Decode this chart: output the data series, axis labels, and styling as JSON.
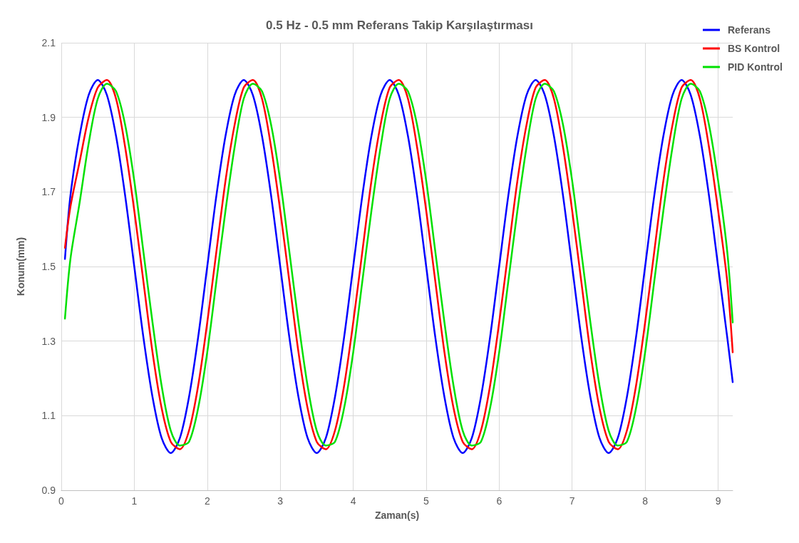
{
  "chart_data": {
    "type": "line",
    "title": "0.5 Hz - 0.5 mm Referans Takip Karşılaştırması",
    "xlabel": "Zaman(s)",
    "ylabel": "Konum(mm)",
    "x": [
      0.05,
      0.125,
      0.25,
      0.375,
      0.5,
      0.625,
      0.75,
      0.875,
      1,
      1.125,
      1.25,
      1.375,
      1.5,
      1.625,
      1.75,
      1.875,
      2,
      2.125,
      2.25,
      2.375,
      2.5,
      2.625,
      2.75,
      2.875,
      3,
      3.125,
      3.25,
      3.375,
      3.5,
      3.625,
      3.75,
      3.875,
      4,
      4.125,
      4.25,
      4.375,
      4.5,
      4.625,
      4.75,
      4.875,
      5,
      5.125,
      5.25,
      5.375,
      5.5,
      5.625,
      5.75,
      5.875,
      6,
      6.125,
      6.25,
      6.375,
      6.5,
      6.625,
      6.75,
      6.875,
      7,
      7.125,
      7.25,
      7.375,
      7.5,
      7.625,
      7.75,
      7.875,
      8,
      8.125,
      8.25,
      8.375,
      8.5,
      8.625,
      8.75,
      8.875,
      9,
      9.125,
      9.2
    ],
    "xlim": [
      0,
      9.2
    ],
    "xticks": [
      0,
      1,
      2,
      3,
      4,
      5,
      6,
      7,
      8,
      9
    ],
    "ylim": [
      0.9,
      2.1
    ],
    "yticks": [
      0.9,
      1.1,
      1.3,
      1.5,
      1.7,
      1.9,
      2.1
    ],
    "grid": true,
    "legend": "top right",
    "marker": "none",
    "line_style": "solid",
    "series": [
      {
        "name": "Referans",
        "color": "#0000ff",
        "values": [
          1.52,
          1.69,
          1.85,
          1.96,
          2.0,
          1.96,
          1.85,
          1.69,
          1.5,
          1.31,
          1.15,
          1.04,
          1.0,
          1.04,
          1.15,
          1.31,
          1.5,
          1.69,
          1.85,
          1.96,
          2.0,
          1.96,
          1.85,
          1.69,
          1.5,
          1.31,
          1.15,
          1.04,
          1.0,
          1.04,
          1.15,
          1.31,
          1.5,
          1.69,
          1.85,
          1.96,
          2.0,
          1.96,
          1.85,
          1.69,
          1.5,
          1.31,
          1.15,
          1.04,
          1.0,
          1.04,
          1.15,
          1.31,
          1.5,
          1.69,
          1.85,
          1.96,
          2.0,
          1.96,
          1.85,
          1.69,
          1.5,
          1.31,
          1.15,
          1.04,
          1.0,
          1.04,
          1.15,
          1.31,
          1.5,
          1.69,
          1.85,
          1.96,
          2.0,
          1.96,
          1.85,
          1.69,
          1.5,
          1.31,
          1.19
        ]
      },
      {
        "name": "BS Kontrol",
        "color": "#ff0000",
        "values": [
          1.55,
          1.66,
          1.78,
          1.9,
          1.98,
          2.0,
          1.95,
          1.82,
          1.65,
          1.46,
          1.27,
          1.12,
          1.03,
          1.01,
          1.06,
          1.18,
          1.35,
          1.54,
          1.73,
          1.88,
          1.98,
          2.0,
          1.95,
          1.82,
          1.65,
          1.46,
          1.27,
          1.12,
          1.03,
          1.01,
          1.06,
          1.18,
          1.35,
          1.54,
          1.73,
          1.88,
          1.98,
          2.0,
          1.95,
          1.82,
          1.65,
          1.46,
          1.27,
          1.12,
          1.03,
          1.01,
          1.06,
          1.18,
          1.35,
          1.54,
          1.73,
          1.88,
          1.98,
          2.0,
          1.95,
          1.82,
          1.65,
          1.46,
          1.27,
          1.12,
          1.03,
          1.01,
          1.06,
          1.18,
          1.35,
          1.54,
          1.73,
          1.88,
          1.98,
          2.0,
          1.95,
          1.82,
          1.65,
          1.46,
          1.27
        ]
      },
      {
        "name": "PID Kontrol",
        "color": "#00e000",
        "values": [
          1.36,
          1.52,
          1.67,
          1.83,
          1.95,
          1.99,
          1.97,
          1.88,
          1.73,
          1.54,
          1.35,
          1.18,
          1.06,
          1.02,
          1.03,
          1.12,
          1.27,
          1.46,
          1.65,
          1.82,
          1.95,
          1.99,
          1.97,
          1.88,
          1.73,
          1.54,
          1.35,
          1.18,
          1.06,
          1.02,
          1.03,
          1.12,
          1.27,
          1.46,
          1.65,
          1.82,
          1.95,
          1.99,
          1.97,
          1.88,
          1.73,
          1.54,
          1.35,
          1.18,
          1.06,
          1.02,
          1.03,
          1.12,
          1.27,
          1.46,
          1.65,
          1.82,
          1.95,
          1.99,
          1.97,
          1.88,
          1.73,
          1.54,
          1.35,
          1.18,
          1.06,
          1.02,
          1.03,
          1.12,
          1.27,
          1.46,
          1.65,
          1.82,
          1.95,
          1.99,
          1.97,
          1.88,
          1.73,
          1.54,
          1.35
        ]
      }
    ]
  }
}
